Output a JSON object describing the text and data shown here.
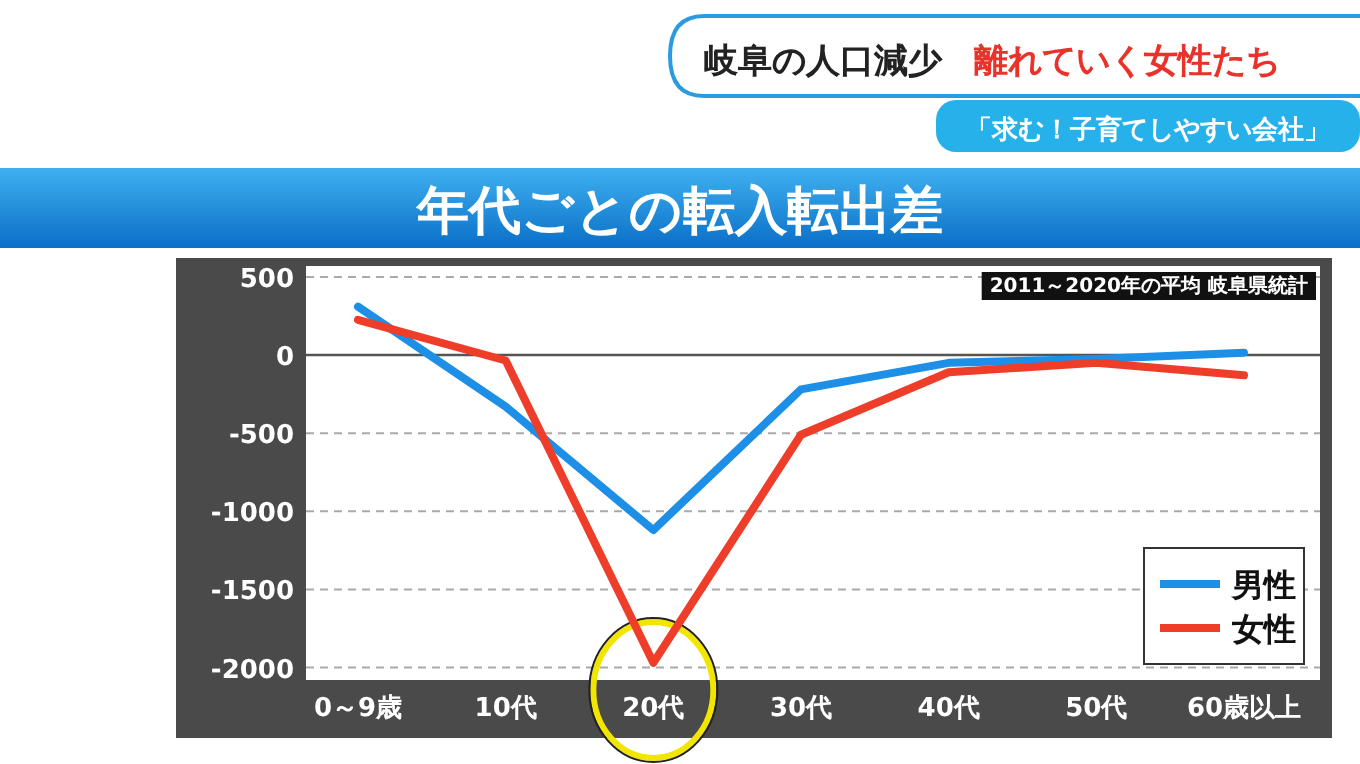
{
  "chart_data": {
    "type": "line",
    "title": "年代ごとの転入転出差",
    "annotations": [
      "岐阜の人口減少",
      "離れていく女性たち",
      "「求む！子育てしやすい会社」",
      "2011～2020年の平均 岐阜県統計"
    ],
    "categories": [
      "0～9歳",
      "10代",
      "20代",
      "30代",
      "40代",
      "50代",
      "60歳以上"
    ],
    "series": [
      {
        "name": "男性",
        "color": "#1e8fe6",
        "values": [
          310,
          -330,
          -1120,
          -220,
          -50,
          -25,
          15
        ]
      },
      {
        "name": "女性",
        "color": "#ee3e2a",
        "values": [
          225,
          -35,
          -1970,
          -510,
          -110,
          -50,
          -130
        ]
      }
    ],
    "ylim": [
      -2080,
      570
    ],
    "yticks": [
      500,
      0,
      -500,
      -1000,
      -1500,
      -2000
    ],
    "ref_lines": [
      {
        "axis": "y",
        "value": 0,
        "color": "#555555",
        "line_style": "solid"
      }
    ],
    "grid": "y",
    "legend": "bottom right",
    "marker": "none",
    "line_style": "solid"
  }
}
